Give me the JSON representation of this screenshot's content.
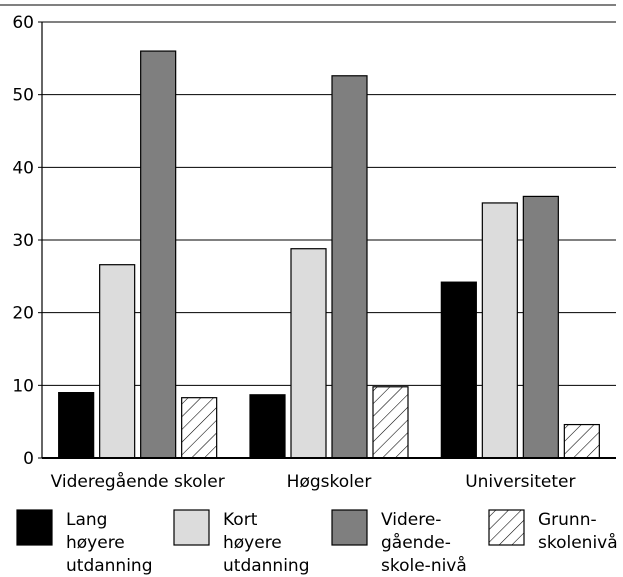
{
  "chart_data": {
    "type": "bar",
    "categories": [
      "Videregående skoler",
      "Høgskoler",
      "Universiteter"
    ],
    "series": [
      {
        "name": "Lang høyere utdanning",
        "legend_lines": [
          "Lang",
          "høyere",
          "utdanning"
        ],
        "values": [
          9,
          8.7,
          24.2
        ],
        "color": "#000000",
        "pattern": "solid"
      },
      {
        "name": "Kort høyere utdanning",
        "legend_lines": [
          "Kort",
          "høyere",
          "utdanning"
        ],
        "values": [
          26.6,
          28.8,
          35.1
        ],
        "color": "#dcdcdc",
        "pattern": "solid"
      },
      {
        "name": "Videre-gående-skole-nivå",
        "legend_lines": [
          "Videre-",
          "gående-",
          "skole-nivå"
        ],
        "values": [
          56,
          52.6,
          36
        ],
        "color": "#7f7f7f",
        "pattern": "solid"
      },
      {
        "name": "Grunn-skolenivå",
        "legend_lines": [
          "Grunn-",
          "skolenivå"
        ],
        "values": [
          8.3,
          9.8,
          4.6
        ],
        "color": "#ffffff",
        "pattern": "hatch"
      }
    ],
    "ylim": [
      0,
      60
    ],
    "yticks": [
      0,
      10,
      20,
      30,
      40,
      50,
      60
    ],
    "grid": true,
    "legend_placement": "bottom"
  }
}
